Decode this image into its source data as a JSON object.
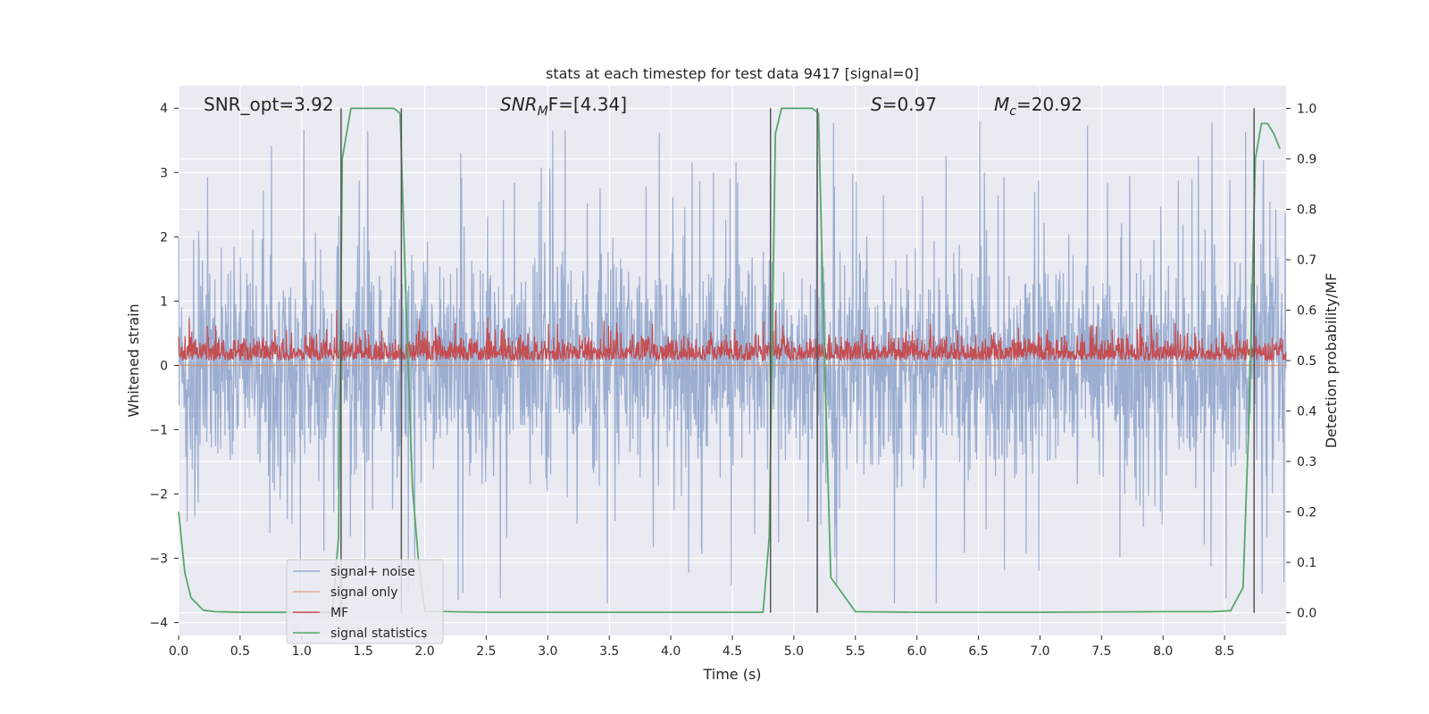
{
  "chart_data": {
    "type": "line",
    "title": "stats at each timestep for test data 9417 [signal=0]",
    "xlabel": "Time (s)",
    "ylabel_left": "Whitened strain",
    "ylabel_right": "Detection probability/MF",
    "xlim": [
      0,
      9.0
    ],
    "ylim_left": [
      -4.2,
      4.35
    ],
    "ylim_right": [
      -0.045,
      1.045
    ],
    "x_ticks": [
      0.0,
      0.5,
      1.0,
      1.5,
      2.0,
      2.5,
      3.0,
      3.5,
      4.0,
      4.5,
      5.0,
      5.5,
      6.0,
      6.5,
      7.0,
      7.5,
      8.0,
      8.5
    ],
    "x_tick_labels": [
      "0.0",
      "0.5",
      "1.0",
      "1.5",
      "2.0",
      "2.5",
      "3.0",
      "3.5",
      "4.0",
      "4.5",
      "5.0",
      "5.5",
      "6.0",
      "6.5",
      "7.0",
      "7.5",
      "8.0",
      "8.5"
    ],
    "y_ticks_left": [
      4,
      3,
      2,
      1,
      0,
      -1,
      -2,
      -3,
      -4
    ],
    "y_tick_labels_left": [
      "4",
      "3",
      "2",
      "1",
      "0",
      "−1",
      "−2",
      "−3",
      "−4"
    ],
    "y_ticks_right": [
      1.0,
      0.9,
      0.8,
      0.7,
      0.6,
      0.5,
      0.4,
      0.3,
      0.2,
      0.1,
      0.0
    ],
    "y_tick_labels_right": [
      "1.0",
      "0.9",
      "0.8",
      "0.7",
      "0.6",
      "0.5",
      "0.4",
      "0.3",
      "0.2",
      "0.1",
      "0.0"
    ],
    "grid": true,
    "legend_position": "lower-left",
    "annotations": {
      "snr_opt": "SNR_opt=3.92",
      "snr_mf_main": "SNR",
      "snr_mf_sub": "M",
      "snr_mf_rest": "F=[4.34]",
      "s_italic": "S",
      "s_rest": "=0.97",
      "mc_main": "M",
      "mc_sub": "c",
      "mc_rest": "=20.92"
    },
    "vertical_lines": [
      1.32,
      1.81,
      4.81,
      5.19,
      8.74
    ],
    "series": [
      {
        "name": "signal+ noise",
        "axis": "left",
        "color": "#4c72b0",
        "opacity": 0.5,
        "amplitude_summary": {
          "typical_low": -1.4,
          "typical_high": 1.7,
          "peak_low": -3.7,
          "peak_high": 4.0
        }
      },
      {
        "name": "signal only",
        "axis": "left",
        "color": "#dd8452",
        "values_constant": 0.0
      },
      {
        "name": "MF",
        "axis": "right",
        "color": "#c44e52",
        "amplitude_summary": {
          "baseline": 0.5,
          "typical_high": 0.56,
          "peak_high": 0.6
        }
      },
      {
        "name": "signal statistics",
        "axis": "right",
        "color": "#55a868",
        "x": [
          0.0,
          0.05,
          0.1,
          0.2,
          0.3,
          0.5,
          1.0,
          1.25,
          1.3,
          1.33,
          1.4,
          1.5,
          1.7,
          1.75,
          1.8,
          1.85,
          1.9,
          1.95,
          2.0,
          2.2,
          2.5,
          3.0,
          3.5,
          4.0,
          4.5,
          4.75,
          4.8,
          4.85,
          4.9,
          5.0,
          5.15,
          5.2,
          5.25,
          5.3,
          5.5,
          6.0,
          7.0,
          8.0,
          8.4,
          8.55,
          8.65,
          8.7,
          8.75,
          8.8,
          8.85,
          8.9,
          8.95
        ],
        "values": [
          0.2,
          0.08,
          0.03,
          0.005,
          0.002,
          0.001,
          0.001,
          0.001,
          0.15,
          0.9,
          1.0,
          1.0,
          1.0,
          1.0,
          0.99,
          0.6,
          0.25,
          0.1,
          0.003,
          0.002,
          0.001,
          0.001,
          0.001,
          0.001,
          0.001,
          0.001,
          0.15,
          0.95,
          1.0,
          1.0,
          1.0,
          0.99,
          0.5,
          0.07,
          0.002,
          0.001,
          0.001,
          0.002,
          0.002,
          0.004,
          0.05,
          0.4,
          0.9,
          0.97,
          0.97,
          0.95,
          0.92
        ]
      }
    ]
  }
}
